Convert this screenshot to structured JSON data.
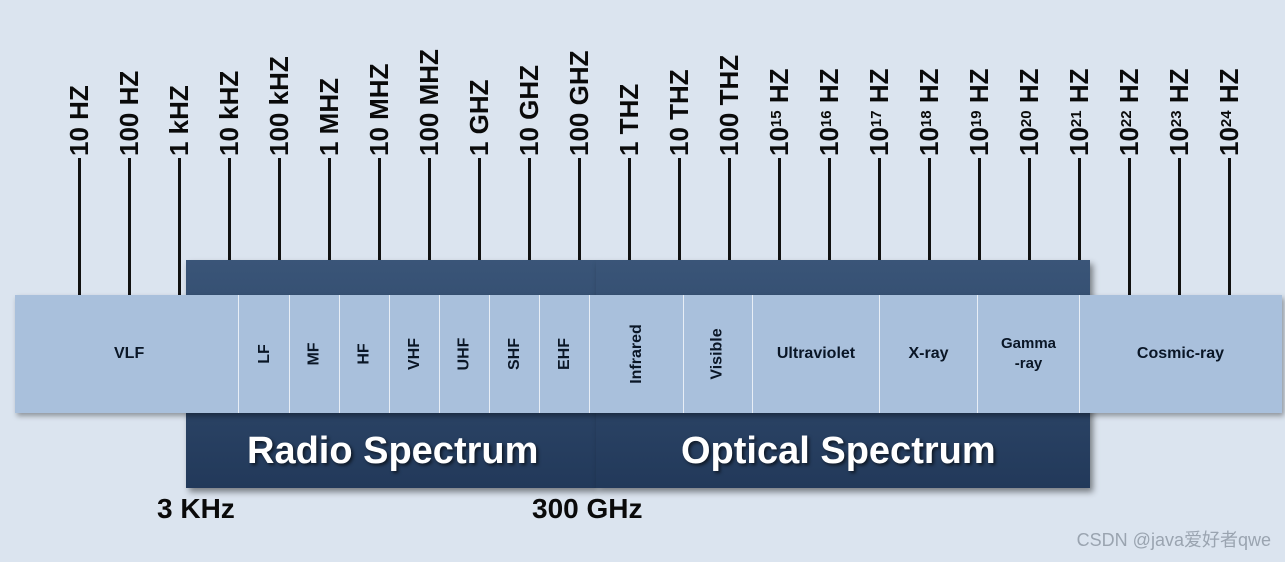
{
  "frequency_ticks": [
    {
      "base": "10 HZ",
      "exp": ""
    },
    {
      "base": "100 HZ",
      "exp": ""
    },
    {
      "base": "1 kHZ",
      "exp": ""
    },
    {
      "base": "10 kHZ",
      "exp": ""
    },
    {
      "base": "100 kHZ",
      "exp": ""
    },
    {
      "base": "1 MHZ",
      "exp": ""
    },
    {
      "base": "10 MHZ",
      "exp": ""
    },
    {
      "base": "100 MHZ",
      "exp": ""
    },
    {
      "base": "1 GHZ",
      "exp": ""
    },
    {
      "base": "10 GHZ",
      "exp": ""
    },
    {
      "base": "100 GHZ",
      "exp": ""
    },
    {
      "base": "1 THZ",
      "exp": ""
    },
    {
      "base": "10 THZ",
      "exp": ""
    },
    {
      "base": "100 THZ",
      "exp": ""
    },
    {
      "base": "10",
      "exp": "15",
      "unit": " HZ"
    },
    {
      "base": "10",
      "exp": "16",
      "unit": " HZ"
    },
    {
      "base": "10",
      "exp": "17",
      "unit": " HZ"
    },
    {
      "base": "10",
      "exp": "18",
      "unit": " HZ"
    },
    {
      "base": "10",
      "exp": "19",
      "unit": " HZ"
    },
    {
      "base": "10",
      "exp": "20",
      "unit": " HZ"
    },
    {
      "base": "10",
      "exp": "21",
      "unit": " HZ"
    },
    {
      "base": "10",
      "exp": "22",
      "unit": " HZ"
    },
    {
      "base": "10",
      "exp": "23",
      "unit": " HZ"
    },
    {
      "base": "10",
      "exp": "24",
      "unit": " HZ"
    }
  ],
  "bands": [
    {
      "label": "VLF",
      "vertical": false
    },
    {
      "label": "LF",
      "vertical": true
    },
    {
      "label": "MF",
      "vertical": true
    },
    {
      "label": "HF",
      "vertical": true
    },
    {
      "label": "VHF",
      "vertical": true
    },
    {
      "label": "UHF",
      "vertical": true
    },
    {
      "label": "SHF",
      "vertical": true
    },
    {
      "label": "EHF",
      "vertical": true
    },
    {
      "label": "Infrared",
      "vertical": true
    },
    {
      "label": "Visible",
      "vertical": true
    },
    {
      "label": "Ultraviolet",
      "vertical": false
    },
    {
      "label": "X-ray",
      "vertical": false
    },
    {
      "label": "Gamma\n-ray",
      "vertical": false
    },
    {
      "label": "Cosmic-ray",
      "vertical": false
    }
  ],
  "spectra": {
    "radio": "Radio Spectrum",
    "optical": "Optical Spectrum"
  },
  "boundaries": {
    "left": "3 KHz",
    "middle": "300 GHz"
  },
  "watermark": "CSDN @java爱好者qwe",
  "colors": {
    "background": "#dbe4ef",
    "band_fill": "#a9c0dc",
    "dark_block": "#2b4466"
  }
}
